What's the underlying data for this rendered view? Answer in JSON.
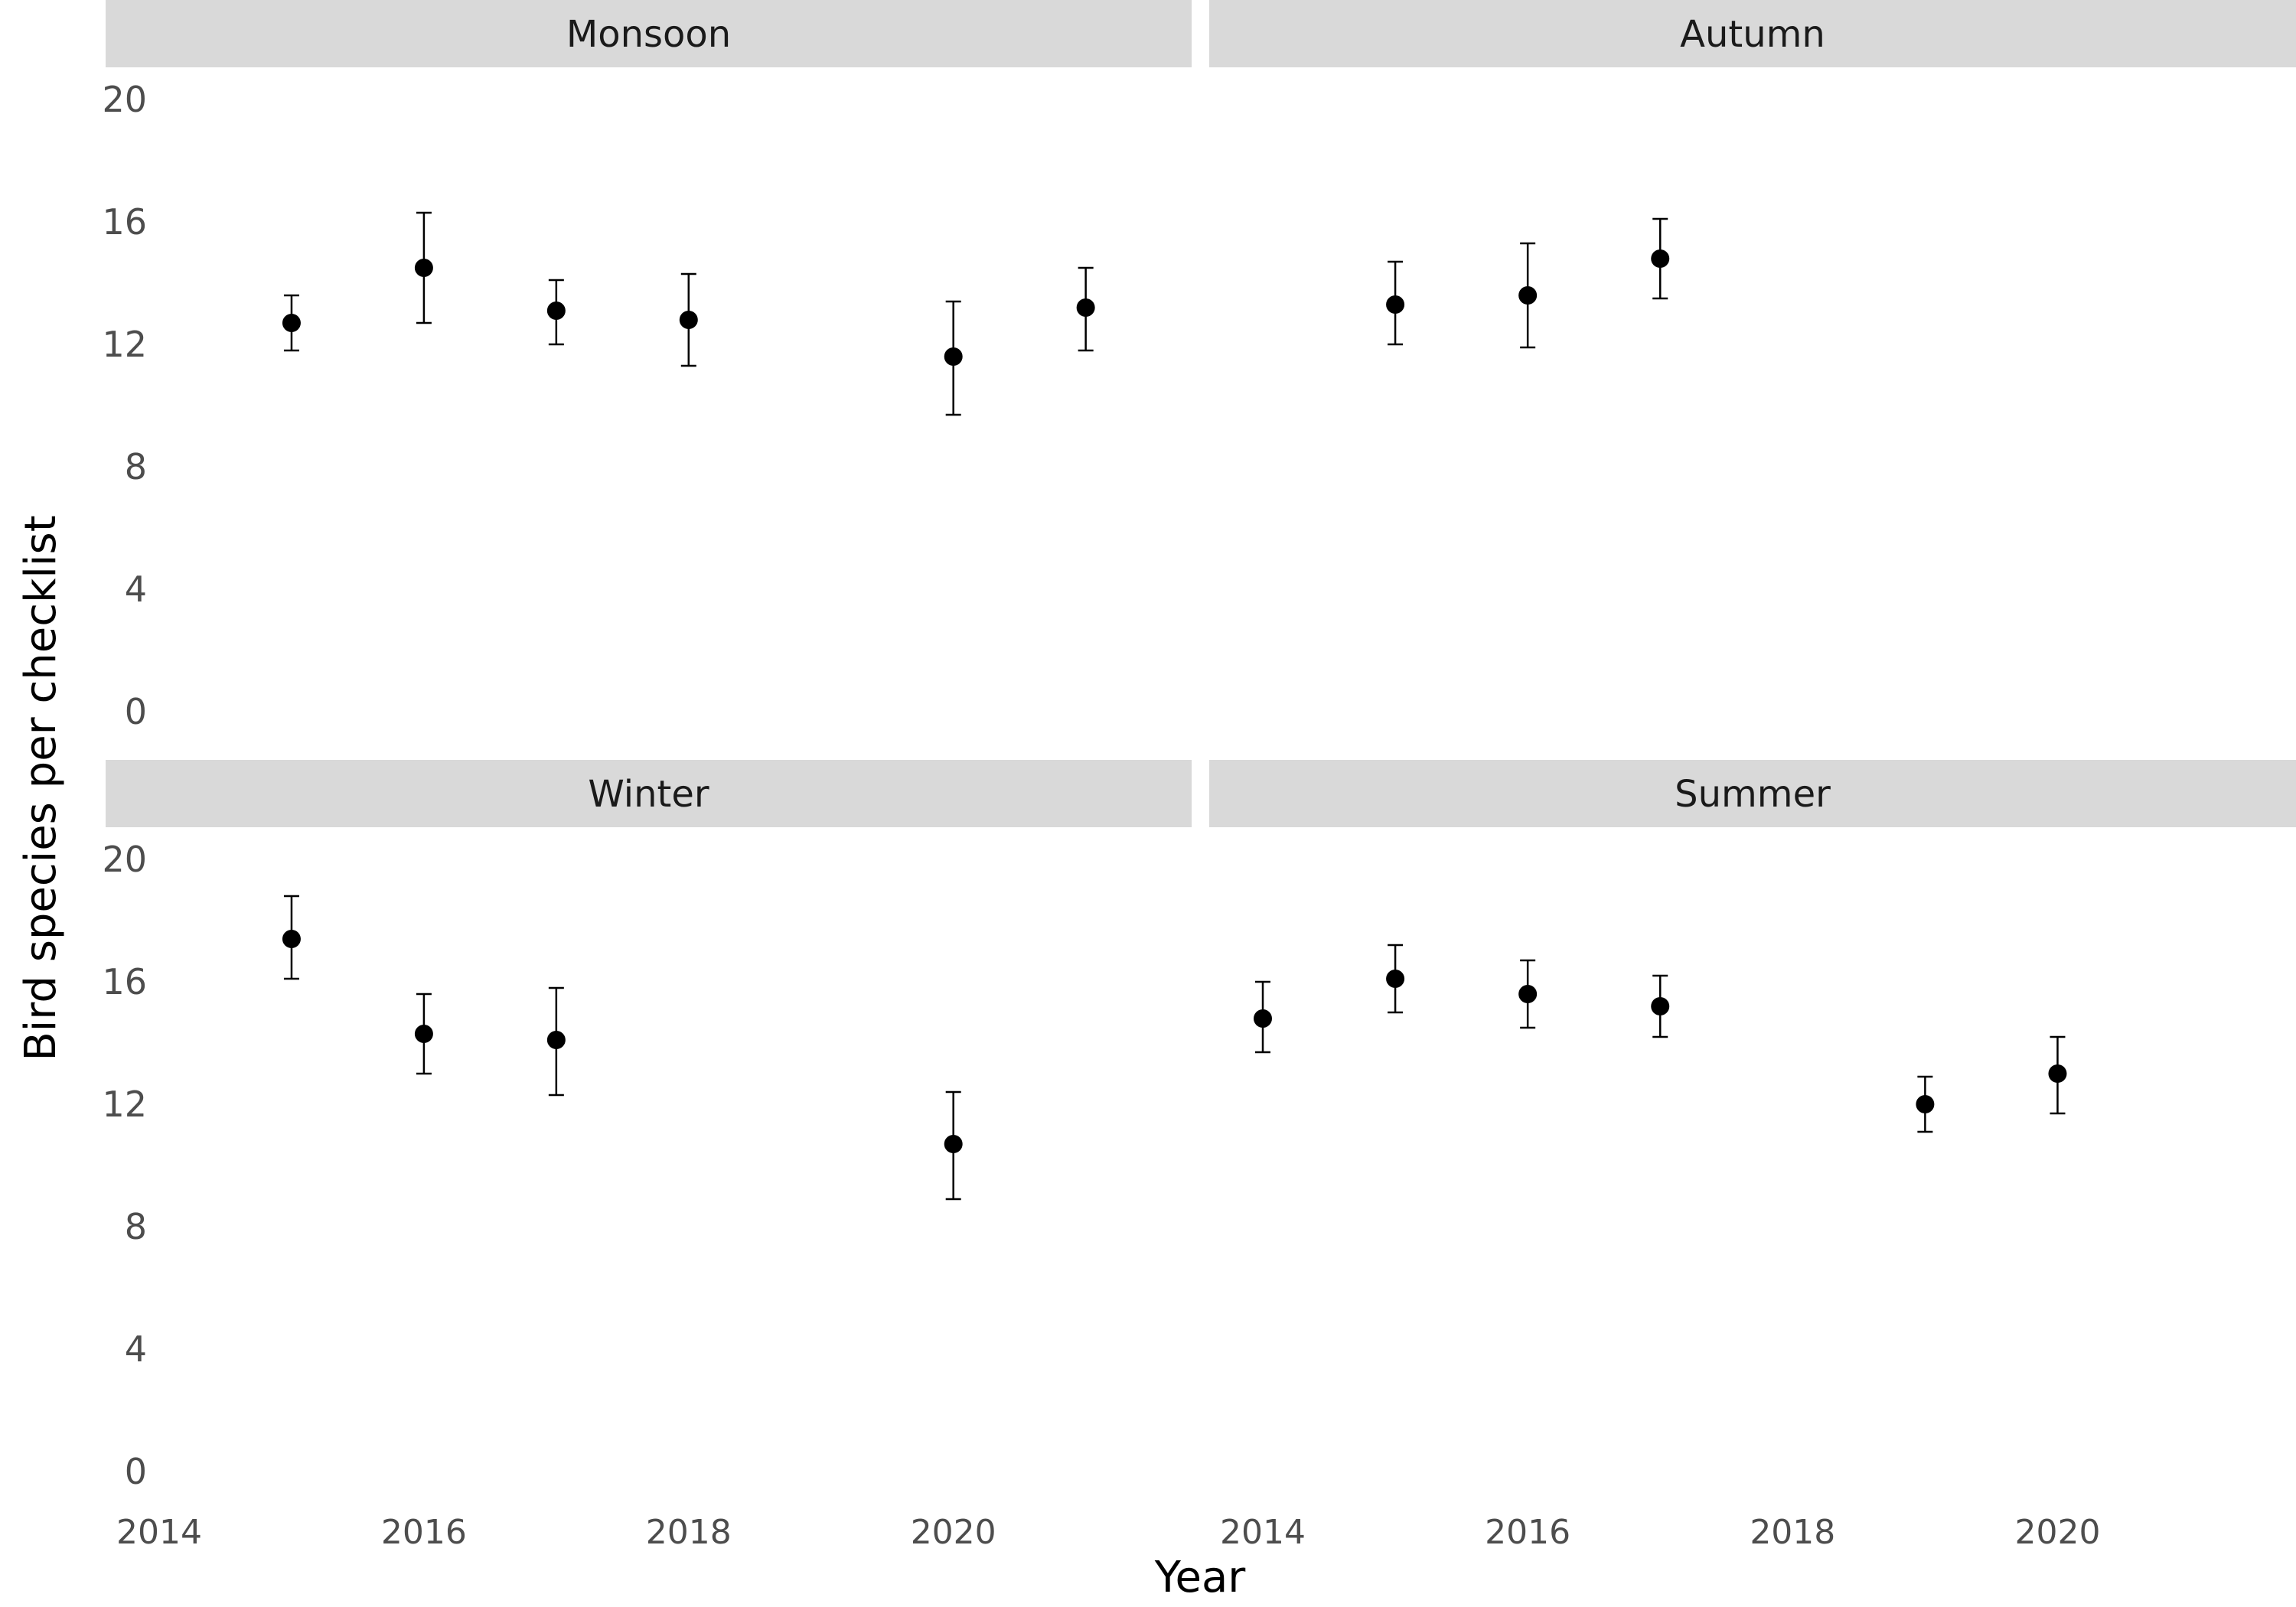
{
  "chart_data": {
    "type": "scatter",
    "xlabel": "Year",
    "ylabel": "Bird species per checklist",
    "ylim": [
      0,
      20
    ],
    "y_ticks": [
      0,
      4,
      8,
      12,
      16,
      20
    ],
    "x_ticks": [
      2014,
      2016,
      2018,
      2020
    ],
    "grid": false,
    "error_bars": true,
    "panels": [
      {
        "name": "Monsoon",
        "xlim": [
          2014,
          2021.8
        ],
        "points": [
          {
            "x": 2015,
            "y": 12.7,
            "ymin": 11.8,
            "ymax": 13.6
          },
          {
            "x": 2016,
            "y": 14.5,
            "ymin": 12.7,
            "ymax": 16.3
          },
          {
            "x": 2017,
            "y": 13.1,
            "ymin": 12.0,
            "ymax": 14.1
          },
          {
            "x": 2018,
            "y": 12.8,
            "ymin": 11.3,
            "ymax": 14.3
          },
          {
            "x": 2020,
            "y": 11.6,
            "ymin": 9.7,
            "ymax": 13.4
          },
          {
            "x": 2021,
            "y": 13.2,
            "ymin": 11.8,
            "ymax": 14.5
          }
        ]
      },
      {
        "name": "Autumn",
        "xlim": [
          2014,
          2021.8
        ],
        "points": [
          {
            "x": 2015,
            "y": 13.3,
            "ymin": 12.0,
            "ymax": 14.7
          },
          {
            "x": 2016,
            "y": 13.6,
            "ymin": 11.9,
            "ymax": 15.3
          },
          {
            "x": 2017,
            "y": 14.8,
            "ymin": 13.5,
            "ymax": 16.1
          }
        ]
      },
      {
        "name": "Winter",
        "xlim": [
          2014,
          2021.8
        ],
        "points": [
          {
            "x": 2015,
            "y": 17.4,
            "ymin": 16.1,
            "ymax": 18.8
          },
          {
            "x": 2016,
            "y": 14.3,
            "ymin": 13.0,
            "ymax": 15.6
          },
          {
            "x": 2017,
            "y": 14.1,
            "ymin": 12.3,
            "ymax": 15.8
          },
          {
            "x": 2020,
            "y": 10.7,
            "ymin": 8.9,
            "ymax": 12.4
          }
        ]
      },
      {
        "name": "Summer",
        "xlim": [
          2014,
          2021.8
        ],
        "points": [
          {
            "x": 2014,
            "y": 14.8,
            "ymin": 13.7,
            "ymax": 16.0
          },
          {
            "x": 2015,
            "y": 16.1,
            "ymin": 15.0,
            "ymax": 17.2
          },
          {
            "x": 2016,
            "y": 15.6,
            "ymin": 14.5,
            "ymax": 16.7
          },
          {
            "x": 2017,
            "y": 15.2,
            "ymin": 14.2,
            "ymax": 16.2
          },
          {
            "x": 2019,
            "y": 12.0,
            "ymin": 11.1,
            "ymax": 12.9
          },
          {
            "x": 2020,
            "y": 13.0,
            "ymin": 11.7,
            "ymax": 14.2
          }
        ]
      }
    ]
  }
}
